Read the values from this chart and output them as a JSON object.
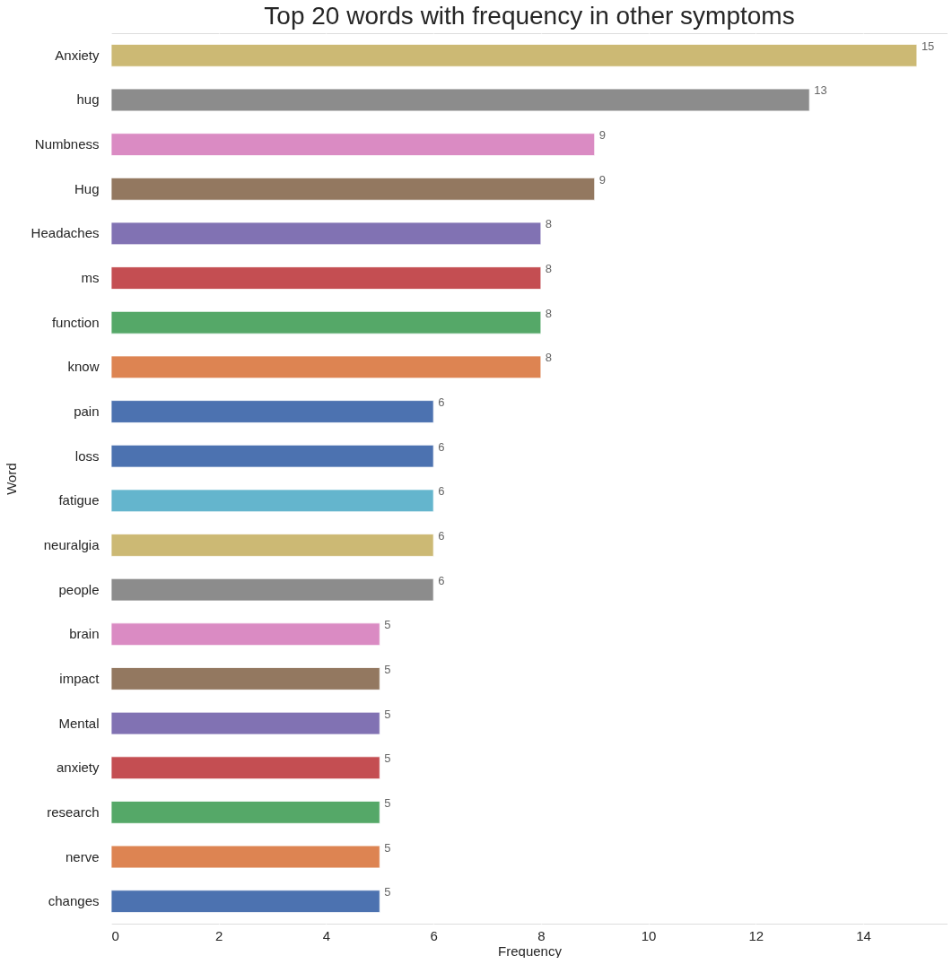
{
  "chart_data": {
    "type": "bar",
    "orientation": "horizontal",
    "title": "Top 20 words with frequency in other symptoms",
    "xlabel": "Frequency",
    "ylabel": "Word",
    "categories": [
      "Anxiety",
      "hug",
      "Numbness",
      "Hug",
      "Headaches",
      "ms",
      "function",
      "know",
      "pain",
      "loss",
      "fatigue",
      "neuralgia",
      "people",
      "brain",
      "impact",
      "Mental",
      "anxiety",
      "research",
      "nerve",
      "changes"
    ],
    "values": [
      15,
      13,
      9,
      9,
      8,
      8,
      8,
      8,
      6,
      6,
      6,
      6,
      6,
      5,
      5,
      5,
      5,
      5,
      5,
      5
    ],
    "colors": [
      "#ccb974",
      "#8c8c8c",
      "#da8bc3",
      "#937860",
      "#8172b3",
      "#c44e52",
      "#55a868",
      "#dd8452",
      "#4c72b0",
      "#4c72b0",
      "#64b5cd",
      "#ccb974",
      "#8c8c8c",
      "#da8bc3",
      "#937860",
      "#8172b3",
      "#c44e52",
      "#55a868",
      "#dd8452",
      "#4c72b0"
    ],
    "xlim": [
      0,
      15.57
    ],
    "xticks": [
      0,
      2,
      4,
      6,
      8,
      10,
      12,
      14
    ],
    "grid": true,
    "data_labels": true
  }
}
